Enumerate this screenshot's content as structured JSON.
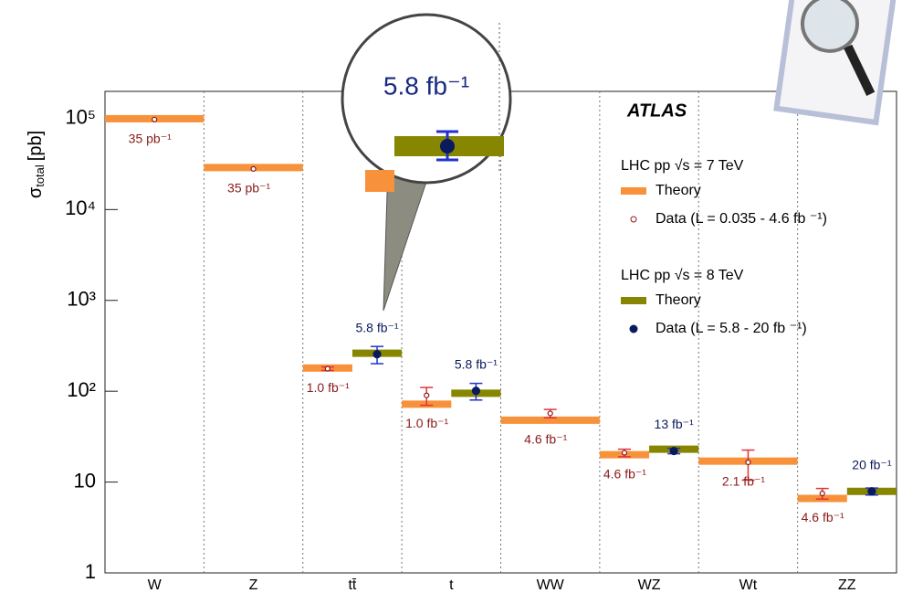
{
  "chart_data": {
    "type": "log-bands",
    "experiment": "ATLAS",
    "ylabel": {
      "symbol": "σ",
      "subscript": "total",
      "unit": "[pb]"
    },
    "categories": [
      "W",
      "Z",
      "tt̄",
      "t",
      "WW",
      "WZ",
      "Wt",
      "ZZ"
    ],
    "ylim": [
      1,
      200000
    ],
    "log_y": true,
    "yticks": [
      1,
      10,
      {
        "value": 100,
        "label": "10²"
      },
      {
        "value": 1000,
        "label": "10³"
      },
      {
        "value": 10000,
        "label": "10⁴"
      },
      {
        "value": 100000,
        "label": "10⁵"
      }
    ],
    "legend_groups": [
      "LHC pp √s = 7 TeV",
      "LHC pp √s = 8 TeV"
    ],
    "callout_label": "5.8 fb⁻¹",
    "series": [
      {
        "name": "Theory",
        "kind": "theory",
        "group": 0,
        "color": "#f7923a",
        "values": [
          100000,
          29000,
          180,
          72,
          48,
          20,
          17,
          6.6
        ]
      },
      {
        "name": "Data (L = 0.035 - 4.6 fb ⁻¹)",
        "kind": "data",
        "group": 0,
        "color": "#8b1a1a",
        "error_color": "#e0333a",
        "open": true,
        "values": [
          98000,
          28000,
          177,
          90,
          57,
          21,
          16.5,
          7.5
        ],
        "errors": [
          null,
          null,
          8,
          20,
          6,
          2,
          6,
          1
        ],
        "lumi_labels": [
          "35 pb⁻¹",
          "35 pb⁻¹",
          "1.0 fb⁻¹",
          "1.0 fb⁻¹",
          "4.6 fb⁻¹",
          "4.6 fb⁻¹",
          "2.1 fb⁻¹",
          "4.6 fb⁻¹"
        ]
      },
      {
        "name": "Theory",
        "kind": "theory",
        "group": 1,
        "color": "#868600",
        "values": [
          null,
          null,
          262,
          95,
          null,
          23,
          null,
          7.9
        ]
      },
      {
        "name": "Data (L = 5.8 - 20 fb ⁻¹)",
        "kind": "data",
        "group": 1,
        "color": "#0a1a5c",
        "error_color": "#2233cc",
        "open": false,
        "values": [
          null,
          null,
          256,
          101,
          null,
          22,
          null,
          7.9
        ],
        "errors": [
          null,
          null,
          55,
          21,
          null,
          1.5,
          null,
          0.7
        ],
        "lumi_labels": [
          null,
          null,
          "5.8 fb⁻¹",
          "5.8 fb⁻¹",
          null,
          "13 fb⁻¹",
          null,
          "20 fb⁻¹"
        ]
      }
    ]
  }
}
